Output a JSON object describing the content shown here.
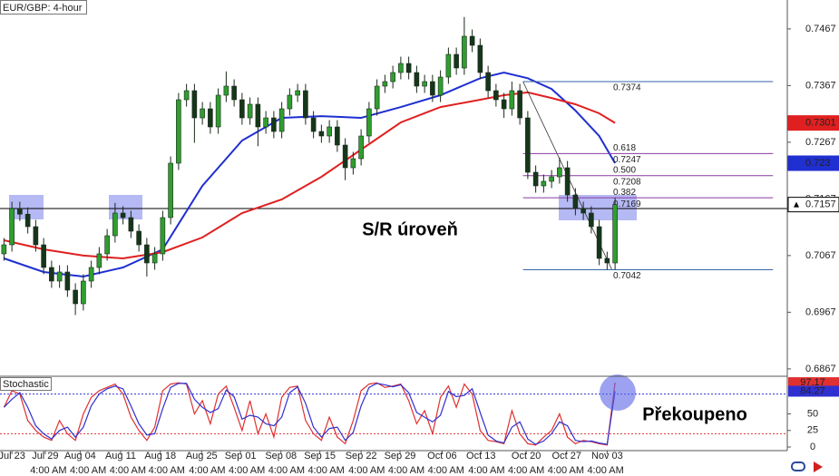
{
  "chart_data": {
    "type": "candlestick",
    "title": "EUR/GBP: 4-hour",
    "xlim": [
      -0.5,
      98.7
    ],
    "ylim": [
      0.6854,
      0.7518
    ],
    "yticks": [
      0.6867,
      0.6967,
      0.7067,
      0.7167,
      0.7267,
      0.7367,
      0.7467
    ],
    "xticks": [
      {
        "value": 1,
        "label": "Jul 23"
      },
      {
        "value": 5.2,
        "label": "Jul 29"
      },
      {
        "value": 9.6,
        "label": "Aug 04"
      },
      {
        "value": 14.7,
        "label": "Aug 11"
      },
      {
        "value": 19.7,
        "label": "Aug 18"
      },
      {
        "value": 24.9,
        "label": "Aug 25"
      },
      {
        "value": 29.8,
        "label": "Sep 01"
      },
      {
        "value": 34.9,
        "label": "Sep 08"
      },
      {
        "value": 39.8,
        "label": "Sep 15"
      },
      {
        "value": 45,
        "label": "Sep 22"
      },
      {
        "value": 49.9,
        "label": "Sep 29"
      },
      {
        "value": 55.2,
        "label": "Oct 06"
      },
      {
        "value": 60.1,
        "label": "Oct 13"
      },
      {
        "value": 65.8,
        "label": "Oct 20"
      },
      {
        "value": 70.9,
        "label": "Oct 27"
      },
      {
        "value": 76,
        "label": "Nov 03"
      }
    ],
    "xticks_time": [
      {
        "value": 5.6,
        "label": "4:00 AM"
      },
      {
        "value": 10.6,
        "label": "4:00 AM"
      },
      {
        "value": 15.6,
        "label": "4:00 AM"
      },
      {
        "value": 20.5,
        "label": "4:00 AM"
      },
      {
        "value": 25.6,
        "label": "4:00 AM"
      },
      {
        "value": 30.6,
        "label": "4:00 AM"
      },
      {
        "value": 35.6,
        "label": "4:00 AM"
      },
      {
        "value": 40.6,
        "label": "4:00 AM"
      },
      {
        "value": 45.7,
        "label": "4:00 AM"
      },
      {
        "value": 50.7,
        "label": "4:00 AM"
      },
      {
        "value": 55.7,
        "label": "4:00 AM"
      },
      {
        "value": 60.8,
        "label": "4:00 AM"
      },
      {
        "value": 65.8,
        "label": "4:00 AM"
      },
      {
        "value": 70.8,
        "label": "4:00 AM"
      },
      {
        "value": 75.8,
        "label": "4:00 AM"
      }
    ],
    "up_color": "#2f9e2f",
    "down_color": "#16361a",
    "open": [
      0.707,
      0.7086,
      0.715,
      0.714,
      0.7118,
      0.7086,
      0.7046,
      0.7022,
      0.7038,
      0.7006,
      0.6982,
      0.7022,
      0.7046,
      0.707,
      0.7102,
      0.7142,
      0.7134,
      0.711,
      0.7086,
      0.7054,
      0.707,
      0.7134,
      0.723,
      0.7342,
      0.7358,
      0.731,
      0.7326,
      0.7294,
      0.735,
      0.7366,
      0.7342,
      0.731,
      0.7334,
      0.7294,
      0.731,
      0.7286,
      0.7326,
      0.735,
      0.7358,
      0.731,
      0.7286,
      0.7278,
      0.7294,
      0.7262,
      0.7222,
      0.7238,
      0.7278,
      0.7326,
      0.7366,
      0.7374,
      0.739,
      0.7406,
      0.739,
      0.7366,
      0.7374,
      0.735,
      0.7382,
      0.7422,
      0.7398,
      0.7454,
      0.7438,
      0.739,
      0.7358,
      0.7342,
      0.7326,
      0.7358,
      0.731,
      0.7214,
      0.719,
      0.7198,
      0.7206,
      0.7222,
      0.7174,
      0.715,
      0.7142,
      0.7118,
      0.7062,
      0.7054
    ],
    "high": [
      0.7098,
      0.7162,
      0.7162,
      0.7152,
      0.713,
      0.7098,
      0.7058,
      0.705,
      0.705,
      0.7018,
      0.7034,
      0.7058,
      0.7082,
      0.7114,
      0.716,
      0.7154,
      0.7146,
      0.7122,
      0.7098,
      0.7082,
      0.7146,
      0.7242,
      0.7354,
      0.737,
      0.737,
      0.7338,
      0.7338,
      0.7362,
      0.7392,
      0.7378,
      0.7354,
      0.7346,
      0.7346,
      0.7322,
      0.7322,
      0.7338,
      0.7362,
      0.737,
      0.737,
      0.7322,
      0.7298,
      0.7306,
      0.7306,
      0.7274,
      0.725,
      0.729,
      0.7338,
      0.7378,
      0.7386,
      0.7402,
      0.7418,
      0.7418,
      0.7402,
      0.7386,
      0.7386,
      0.7394,
      0.7434,
      0.7434,
      0.7488,
      0.7466,
      0.745,
      0.7402,
      0.737,
      0.7354,
      0.7374,
      0.737,
      0.7322,
      0.7226,
      0.721,
      0.7218,
      0.724,
      0.7234,
      0.7186,
      0.7162,
      0.7154,
      0.713,
      0.7074,
      0.7169
    ],
    "low": [
      0.7058,
      0.7074,
      0.7128,
      0.7106,
      0.7074,
      0.7034,
      0.701,
      0.701,
      0.6994,
      0.6962,
      0.697,
      0.701,
      0.7034,
      0.7058,
      0.709,
      0.7122,
      0.7098,
      0.7074,
      0.703,
      0.7042,
      0.7058,
      0.7122,
      0.7218,
      0.733,
      0.7266,
      0.7298,
      0.7282,
      0.7282,
      0.7338,
      0.733,
      0.7298,
      0.7298,
      0.726,
      0.7282,
      0.7274,
      0.7274,
      0.7314,
      0.7338,
      0.7298,
      0.7274,
      0.7266,
      0.7266,
      0.725,
      0.72,
      0.721,
      0.7226,
      0.7266,
      0.7314,
      0.7354,
      0.7362,
      0.7378,
      0.7378,
      0.7354,
      0.7354,
      0.7338,
      0.7338,
      0.737,
      0.7386,
      0.7386,
      0.7426,
      0.7378,
      0.7346,
      0.733,
      0.731,
      0.7314,
      0.7298,
      0.7202,
      0.7178,
      0.7178,
      0.7186,
      0.7194,
      0.7162,
      0.7138,
      0.713,
      0.7106,
      0.705,
      0.7042,
      0.7042
    ],
    "close": [
      0.7086,
      0.715,
      0.714,
      0.7118,
      0.7086,
      0.7046,
      0.7022,
      0.7038,
      0.7006,
      0.6982,
      0.7022,
      0.7046,
      0.707,
      0.7102,
      0.7142,
      0.7134,
      0.711,
      0.7086,
      0.7054,
      0.707,
      0.7134,
      0.723,
      0.7342,
      0.7358,
      0.731,
      0.7326,
      0.7294,
      0.735,
      0.7366,
      0.7342,
      0.731,
      0.7334,
      0.7294,
      0.731,
      0.7286,
      0.7326,
      0.735,
      0.7358,
      0.731,
      0.7286,
      0.7278,
      0.7294,
      0.7262,
      0.7222,
      0.7238,
      0.7278,
      0.7326,
      0.7366,
      0.7374,
      0.739,
      0.7406,
      0.739,
      0.7366,
      0.7374,
      0.735,
      0.7382,
      0.7422,
      0.7398,
      0.7454,
      0.7438,
      0.739,
      0.7358,
      0.7342,
      0.7326,
      0.7358,
      0.731,
      0.7214,
      0.719,
      0.7198,
      0.7206,
      0.7222,
      0.7174,
      0.715,
      0.7142,
      0.7118,
      0.7062,
      0.7054,
      0.7157
    ],
    "ma": [
      {
        "color": "#1f2fd0",
        "x": [
          0,
          5,
          10,
          15,
          20,
          25,
          30,
          35,
          40,
          45,
          50,
          55,
          60,
          63,
          66,
          69,
          72,
          75,
          77
        ],
        "values": [
          0.7062,
          0.7038,
          0.703,
          0.7046,
          0.7078,
          0.719,
          0.727,
          0.731,
          0.7313,
          0.731,
          0.7329,
          0.735,
          0.738,
          0.739,
          0.738,
          0.7361,
          0.7323,
          0.7278,
          0.723
        ]
      },
      {
        "color": "#e02020",
        "x": [
          0,
          5,
          10,
          15,
          20,
          25,
          30,
          35,
          40,
          45,
          50,
          55,
          60,
          63,
          66,
          69,
          72,
          75,
          77
        ],
        "values": [
          0.7094,
          0.7078,
          0.7067,
          0.7062,
          0.7073,
          0.7099,
          0.7142,
          0.7166,
          0.7206,
          0.7254,
          0.7302,
          0.7329,
          0.7342,
          0.735,
          0.7355,
          0.7345,
          0.7334,
          0.7318,
          0.7301
        ]
      }
    ],
    "sr_level": 0.715,
    "sr_color": "#000000",
    "fib": {
      "x": [
        65.4,
        96.9
      ],
      "line_x": [
        65.4,
        76.6
      ],
      "levels": [
        {
          "value": 0.7374,
          "color": "#3a64a8"
        },
        {
          "ratio": 0.618,
          "value": 0.7247,
          "color": "#8a3aa0"
        },
        {
          "ratio": {
            "value": 0.5,
            "label": "0.500"
          },
          "value": 0.7208,
          "color": "#8a3aa0"
        },
        {
          "ratio": 0.382,
          "value": 0.7169,
          "color": "#8a3aa0"
        },
        {
          "value": 0.7042,
          "color": "#3a64a8"
        }
      ]
    },
    "annotations": [
      "S/R úroveň",
      "Překoupeno"
    ],
    "stochastic": {
      "title": "Stochastic",
      "ylim": [
        0,
        100
      ],
      "yticks": [
        0,
        25,
        50
      ],
      "levels": [
        {
          "value": 80,
          "color": "#3030d0"
        },
        {
          "value": 20,
          "color": "#e03030"
        }
      ],
      "series": [
        {
          "color": "#e03030",
          "values": [
            60,
            85,
            80,
            40,
            25,
            15,
            10,
            40,
            20,
            10,
            50,
            75,
            85,
            90,
            95,
            80,
            45,
            25,
            10,
            30,
            85,
            95,
            97,
            95,
            50,
            70,
            35,
            80,
            92,
            60,
            25,
            70,
            20,
            50,
            15,
            75,
            90,
            92,
            40,
            20,
            10,
            45,
            15,
            5,
            40,
            85,
            95,
            97,
            90,
            92,
            95,
            70,
            35,
            55,
            20,
            75,
            92,
            60,
            95,
            80,
            25,
            10,
            8,
            5,
            55,
            20,
            5,
            3,
            15,
            25,
            50,
            15,
            5,
            10,
            8,
            5,
            3,
            97.17
          ]
        },
        {
          "color": "#3030d0",
          "values": [
            60,
            72,
            82,
            60,
            32,
            20,
            12,
            25,
            30,
            15,
            30,
            62,
            80,
            88,
            92,
            88,
            62,
            35,
            18,
            20,
            58,
            90,
            96,
            96,
            72,
            60,
            52,
            58,
            86,
            76,
            42,
            48,
            45,
            35,
            32,
            45,
            82,
            91,
            66,
            30,
            15,
            28,
            30,
            10,
            22,
            62,
            90,
            96,
            94,
            91,
            94,
            82,
            52,
            45,
            38,
            48,
            84,
            76,
            78,
            88,
            52,
            18,
            9,
            6,
            30,
            38,
            12,
            4,
            9,
            20,
            38,
            32,
            10,
            8,
            9,
            6,
            4,
            84.27
          ]
        }
      ]
    }
  }
}
